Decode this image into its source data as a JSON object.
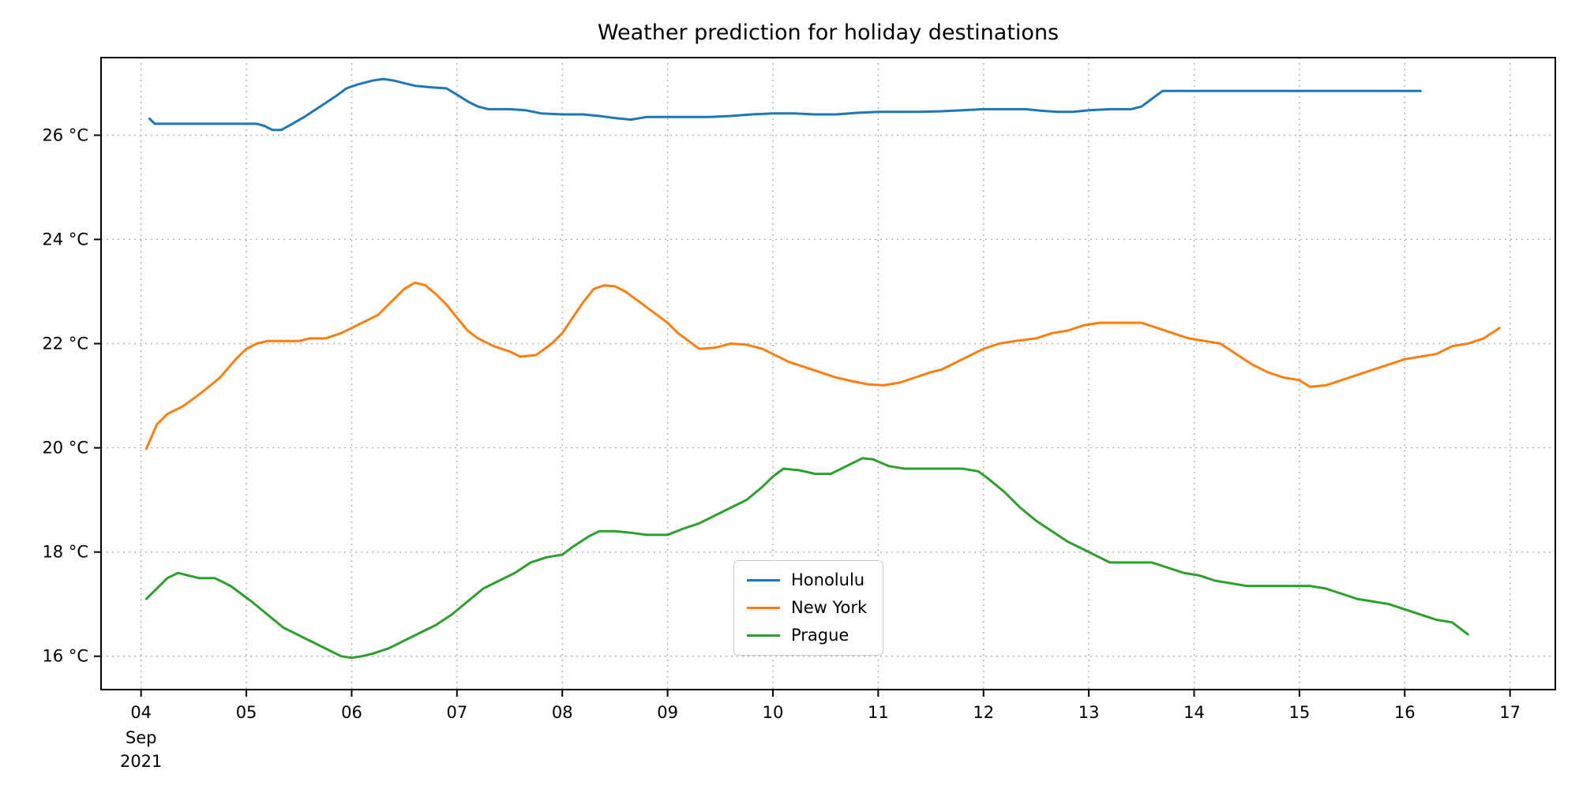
{
  "chart_data": {
    "type": "line",
    "title": "Weather prediction for holiday destinations",
    "xlabel": "",
    "ylabel": "",
    "xlim": [
      3.62,
      17.43
    ],
    "ylim": [
      15.36,
      27.49
    ],
    "grid": true,
    "grid_color": "#b0b0b0",
    "spine_color": "#000000",
    "legend_position": "lower-center-inside",
    "x_ticks": [
      {
        "value": 4,
        "label": "04"
      },
      {
        "value": 5,
        "label": "05"
      },
      {
        "value": 6,
        "label": "06"
      },
      {
        "value": 7,
        "label": "07"
      },
      {
        "value": 8,
        "label": "08"
      },
      {
        "value": 9,
        "label": "09"
      },
      {
        "value": 10,
        "label": "10"
      },
      {
        "value": 11,
        "label": "11"
      },
      {
        "value": 12,
        "label": "12"
      },
      {
        "value": 13,
        "label": "13"
      },
      {
        "value": 14,
        "label": "14"
      },
      {
        "value": 15,
        "label": "15"
      },
      {
        "value": 16,
        "label": "16"
      },
      {
        "value": 17,
        "label": "17"
      }
    ],
    "x_offset_label": {
      "anchor_value": 4,
      "lines": [
        "Sep",
        "2021"
      ]
    },
    "y_ticks": [
      {
        "value": 16,
        "label": "16 °C"
      },
      {
        "value": 18,
        "label": "18 °C"
      },
      {
        "value": 20,
        "label": "20 °C"
      },
      {
        "value": 22,
        "label": "22 °C"
      },
      {
        "value": 24,
        "label": "24 °C"
      },
      {
        "value": 26,
        "label": "26 °C"
      }
    ],
    "series": [
      {
        "name": "Honolulu",
        "color": "#1f77b4",
        "points": [
          [
            4.08,
            26.32
          ],
          [
            4.13,
            26.22
          ],
          [
            4.3,
            26.22
          ],
          [
            4.6,
            26.22
          ],
          [
            4.9,
            26.22
          ],
          [
            5.1,
            26.22
          ],
          [
            5.17,
            26.18
          ],
          [
            5.25,
            26.1
          ],
          [
            5.33,
            26.1
          ],
          [
            5.42,
            26.2
          ],
          [
            5.55,
            26.35
          ],
          [
            5.7,
            26.55
          ],
          [
            5.85,
            26.75
          ],
          [
            5.95,
            26.9
          ],
          [
            6.05,
            26.97
          ],
          [
            6.2,
            27.05
          ],
          [
            6.3,
            27.08
          ],
          [
            6.4,
            27.05
          ],
          [
            6.5,
            27.0
          ],
          [
            6.6,
            26.95
          ],
          [
            6.75,
            26.92
          ],
          [
            6.9,
            26.9
          ],
          [
            7.0,
            26.78
          ],
          [
            7.1,
            26.65
          ],
          [
            7.2,
            26.55
          ],
          [
            7.3,
            26.5
          ],
          [
            7.5,
            26.5
          ],
          [
            7.65,
            26.48
          ],
          [
            7.8,
            26.42
          ],
          [
            8.0,
            26.4
          ],
          [
            8.2,
            26.4
          ],
          [
            8.35,
            26.37
          ],
          [
            8.5,
            26.33
          ],
          [
            8.65,
            26.3
          ],
          [
            8.8,
            26.35
          ],
          [
            9.0,
            26.35
          ],
          [
            9.2,
            26.35
          ],
          [
            9.4,
            26.35
          ],
          [
            9.6,
            26.37
          ],
          [
            9.8,
            26.4
          ],
          [
            10.0,
            26.42
          ],
          [
            10.2,
            26.42
          ],
          [
            10.4,
            26.4
          ],
          [
            10.6,
            26.4
          ],
          [
            10.8,
            26.43
          ],
          [
            11.0,
            26.45
          ],
          [
            11.2,
            26.45
          ],
          [
            11.4,
            26.45
          ],
          [
            11.6,
            26.46
          ],
          [
            11.8,
            26.48
          ],
          [
            12.0,
            26.5
          ],
          [
            12.2,
            26.5
          ],
          [
            12.4,
            26.5
          ],
          [
            12.55,
            26.47
          ],
          [
            12.7,
            26.45
          ],
          [
            12.85,
            26.45
          ],
          [
            13.0,
            26.48
          ],
          [
            13.2,
            26.5
          ],
          [
            13.4,
            26.5
          ],
          [
            13.5,
            26.55
          ],
          [
            13.6,
            26.7
          ],
          [
            13.7,
            26.85
          ],
          [
            13.9,
            26.85
          ],
          [
            14.2,
            26.85
          ],
          [
            14.6,
            26.85
          ],
          [
            15.0,
            26.85
          ],
          [
            15.4,
            26.85
          ],
          [
            15.8,
            26.85
          ],
          [
            16.15,
            26.85
          ]
        ]
      },
      {
        "name": "New York",
        "color": "#ff7f0e",
        "points": [
          [
            4.05,
            19.98
          ],
          [
            4.15,
            20.45
          ],
          [
            4.25,
            20.65
          ],
          [
            4.4,
            20.8
          ],
          [
            4.5,
            20.95
          ],
          [
            4.6,
            21.1
          ],
          [
            4.75,
            21.35
          ],
          [
            4.9,
            21.7
          ],
          [
            5.0,
            21.9
          ],
          [
            5.1,
            22.0
          ],
          [
            5.2,
            22.05
          ],
          [
            5.35,
            22.05
          ],
          [
            5.5,
            22.05
          ],
          [
            5.6,
            22.1
          ],
          [
            5.75,
            22.1
          ],
          [
            5.9,
            22.2
          ],
          [
            6.0,
            22.3
          ],
          [
            6.1,
            22.4
          ],
          [
            6.25,
            22.55
          ],
          [
            6.4,
            22.85
          ],
          [
            6.5,
            23.05
          ],
          [
            6.6,
            23.17
          ],
          [
            6.7,
            23.12
          ],
          [
            6.8,
            22.95
          ],
          [
            6.9,
            22.75
          ],
          [
            7.0,
            22.5
          ],
          [
            7.1,
            22.25
          ],
          [
            7.2,
            22.1
          ],
          [
            7.35,
            21.95
          ],
          [
            7.5,
            21.85
          ],
          [
            7.6,
            21.75
          ],
          [
            7.75,
            21.78
          ],
          [
            7.9,
            22.0
          ],
          [
            8.0,
            22.2
          ],
          [
            8.1,
            22.5
          ],
          [
            8.2,
            22.8
          ],
          [
            8.3,
            23.05
          ],
          [
            8.4,
            23.12
          ],
          [
            8.5,
            23.1
          ],
          [
            8.6,
            23.0
          ],
          [
            8.7,
            22.85
          ],
          [
            8.8,
            22.7
          ],
          [
            8.9,
            22.55
          ],
          [
            9.0,
            22.4
          ],
          [
            9.1,
            22.2
          ],
          [
            9.2,
            22.05
          ],
          [
            9.3,
            21.9
          ],
          [
            9.45,
            21.92
          ],
          [
            9.6,
            22.0
          ],
          [
            9.75,
            21.98
          ],
          [
            9.9,
            21.9
          ],
          [
            10.0,
            21.8
          ],
          [
            10.15,
            21.65
          ],
          [
            10.3,
            21.55
          ],
          [
            10.45,
            21.45
          ],
          [
            10.6,
            21.35
          ],
          [
            10.75,
            21.28
          ],
          [
            10.9,
            21.22
          ],
          [
            11.05,
            21.2
          ],
          [
            11.2,
            21.25
          ],
          [
            11.35,
            21.35
          ],
          [
            11.5,
            21.45
          ],
          [
            11.6,
            21.5
          ],
          [
            11.75,
            21.65
          ],
          [
            11.9,
            21.8
          ],
          [
            12.0,
            21.9
          ],
          [
            12.15,
            22.0
          ],
          [
            12.3,
            22.05
          ],
          [
            12.5,
            22.1
          ],
          [
            12.65,
            22.2
          ],
          [
            12.8,
            22.25
          ],
          [
            12.95,
            22.35
          ],
          [
            13.1,
            22.4
          ],
          [
            13.3,
            22.4
          ],
          [
            13.5,
            22.4
          ],
          [
            13.65,
            22.3
          ],
          [
            13.8,
            22.2
          ],
          [
            13.95,
            22.1
          ],
          [
            14.1,
            22.05
          ],
          [
            14.25,
            22.0
          ],
          [
            14.4,
            21.8
          ],
          [
            14.55,
            21.6
          ],
          [
            14.7,
            21.45
          ],
          [
            14.85,
            21.35
          ],
          [
            15.0,
            21.3
          ],
          [
            15.1,
            21.17
          ],
          [
            15.25,
            21.2
          ],
          [
            15.4,
            21.3
          ],
          [
            15.55,
            21.4
          ],
          [
            15.7,
            21.5
          ],
          [
            15.85,
            21.6
          ],
          [
            16.0,
            21.7
          ],
          [
            16.15,
            21.75
          ],
          [
            16.3,
            21.8
          ],
          [
            16.45,
            21.95
          ],
          [
            16.6,
            22.0
          ],
          [
            16.75,
            22.1
          ],
          [
            16.9,
            22.3
          ]
        ]
      },
      {
        "name": "Prague",
        "color": "#2ca02c",
        "points": [
          [
            4.05,
            17.1
          ],
          [
            4.15,
            17.3
          ],
          [
            4.25,
            17.5
          ],
          [
            4.35,
            17.6
          ],
          [
            4.45,
            17.55
          ],
          [
            4.55,
            17.5
          ],
          [
            4.7,
            17.5
          ],
          [
            4.85,
            17.35
          ],
          [
            4.95,
            17.2
          ],
          [
            5.05,
            17.05
          ],
          [
            5.2,
            16.8
          ],
          [
            5.35,
            16.55
          ],
          [
            5.5,
            16.4
          ],
          [
            5.6,
            16.3
          ],
          [
            5.7,
            16.2
          ],
          [
            5.8,
            16.1
          ],
          [
            5.9,
            16.0
          ],
          [
            6.0,
            15.97
          ],
          [
            6.1,
            16.0
          ],
          [
            6.2,
            16.05
          ],
          [
            6.35,
            16.15
          ],
          [
            6.5,
            16.3
          ],
          [
            6.65,
            16.45
          ],
          [
            6.8,
            16.6
          ],
          [
            6.95,
            16.8
          ],
          [
            7.1,
            17.05
          ],
          [
            7.25,
            17.3
          ],
          [
            7.4,
            17.45
          ],
          [
            7.55,
            17.6
          ],
          [
            7.7,
            17.8
          ],
          [
            7.85,
            17.9
          ],
          [
            8.0,
            17.95
          ],
          [
            8.1,
            18.1
          ],
          [
            8.25,
            18.3
          ],
          [
            8.35,
            18.4
          ],
          [
            8.5,
            18.4
          ],
          [
            8.65,
            18.37
          ],
          [
            8.8,
            18.33
          ],
          [
            9.0,
            18.33
          ],
          [
            9.15,
            18.45
          ],
          [
            9.3,
            18.55
          ],
          [
            9.45,
            18.7
          ],
          [
            9.6,
            18.85
          ],
          [
            9.75,
            19.0
          ],
          [
            9.9,
            19.25
          ],
          [
            10.0,
            19.45
          ],
          [
            10.1,
            19.6
          ],
          [
            10.25,
            19.57
          ],
          [
            10.4,
            19.5
          ],
          [
            10.55,
            19.5
          ],
          [
            10.7,
            19.65
          ],
          [
            10.85,
            19.8
          ],
          [
            10.95,
            19.78
          ],
          [
            11.1,
            19.65
          ],
          [
            11.25,
            19.6
          ],
          [
            11.4,
            19.6
          ],
          [
            11.6,
            19.6
          ],
          [
            11.8,
            19.6
          ],
          [
            11.95,
            19.55
          ],
          [
            12.05,
            19.4
          ],
          [
            12.2,
            19.15
          ],
          [
            12.35,
            18.85
          ],
          [
            12.5,
            18.6
          ],
          [
            12.65,
            18.4
          ],
          [
            12.8,
            18.2
          ],
          [
            12.95,
            18.05
          ],
          [
            13.1,
            17.9
          ],
          [
            13.2,
            17.8
          ],
          [
            13.4,
            17.8
          ],
          [
            13.6,
            17.8
          ],
          [
            13.75,
            17.7
          ],
          [
            13.9,
            17.6
          ],
          [
            14.05,
            17.55
          ],
          [
            14.2,
            17.45
          ],
          [
            14.35,
            17.4
          ],
          [
            14.5,
            17.35
          ],
          [
            14.7,
            17.35
          ],
          [
            14.9,
            17.35
          ],
          [
            15.1,
            17.35
          ],
          [
            15.25,
            17.3
          ],
          [
            15.4,
            17.2
          ],
          [
            15.55,
            17.1
          ],
          [
            15.7,
            17.05
          ],
          [
            15.85,
            17.0
          ],
          [
            16.0,
            16.9
          ],
          [
            16.15,
            16.8
          ],
          [
            16.3,
            16.7
          ],
          [
            16.45,
            16.65
          ],
          [
            16.6,
            16.42
          ]
        ]
      }
    ]
  }
}
